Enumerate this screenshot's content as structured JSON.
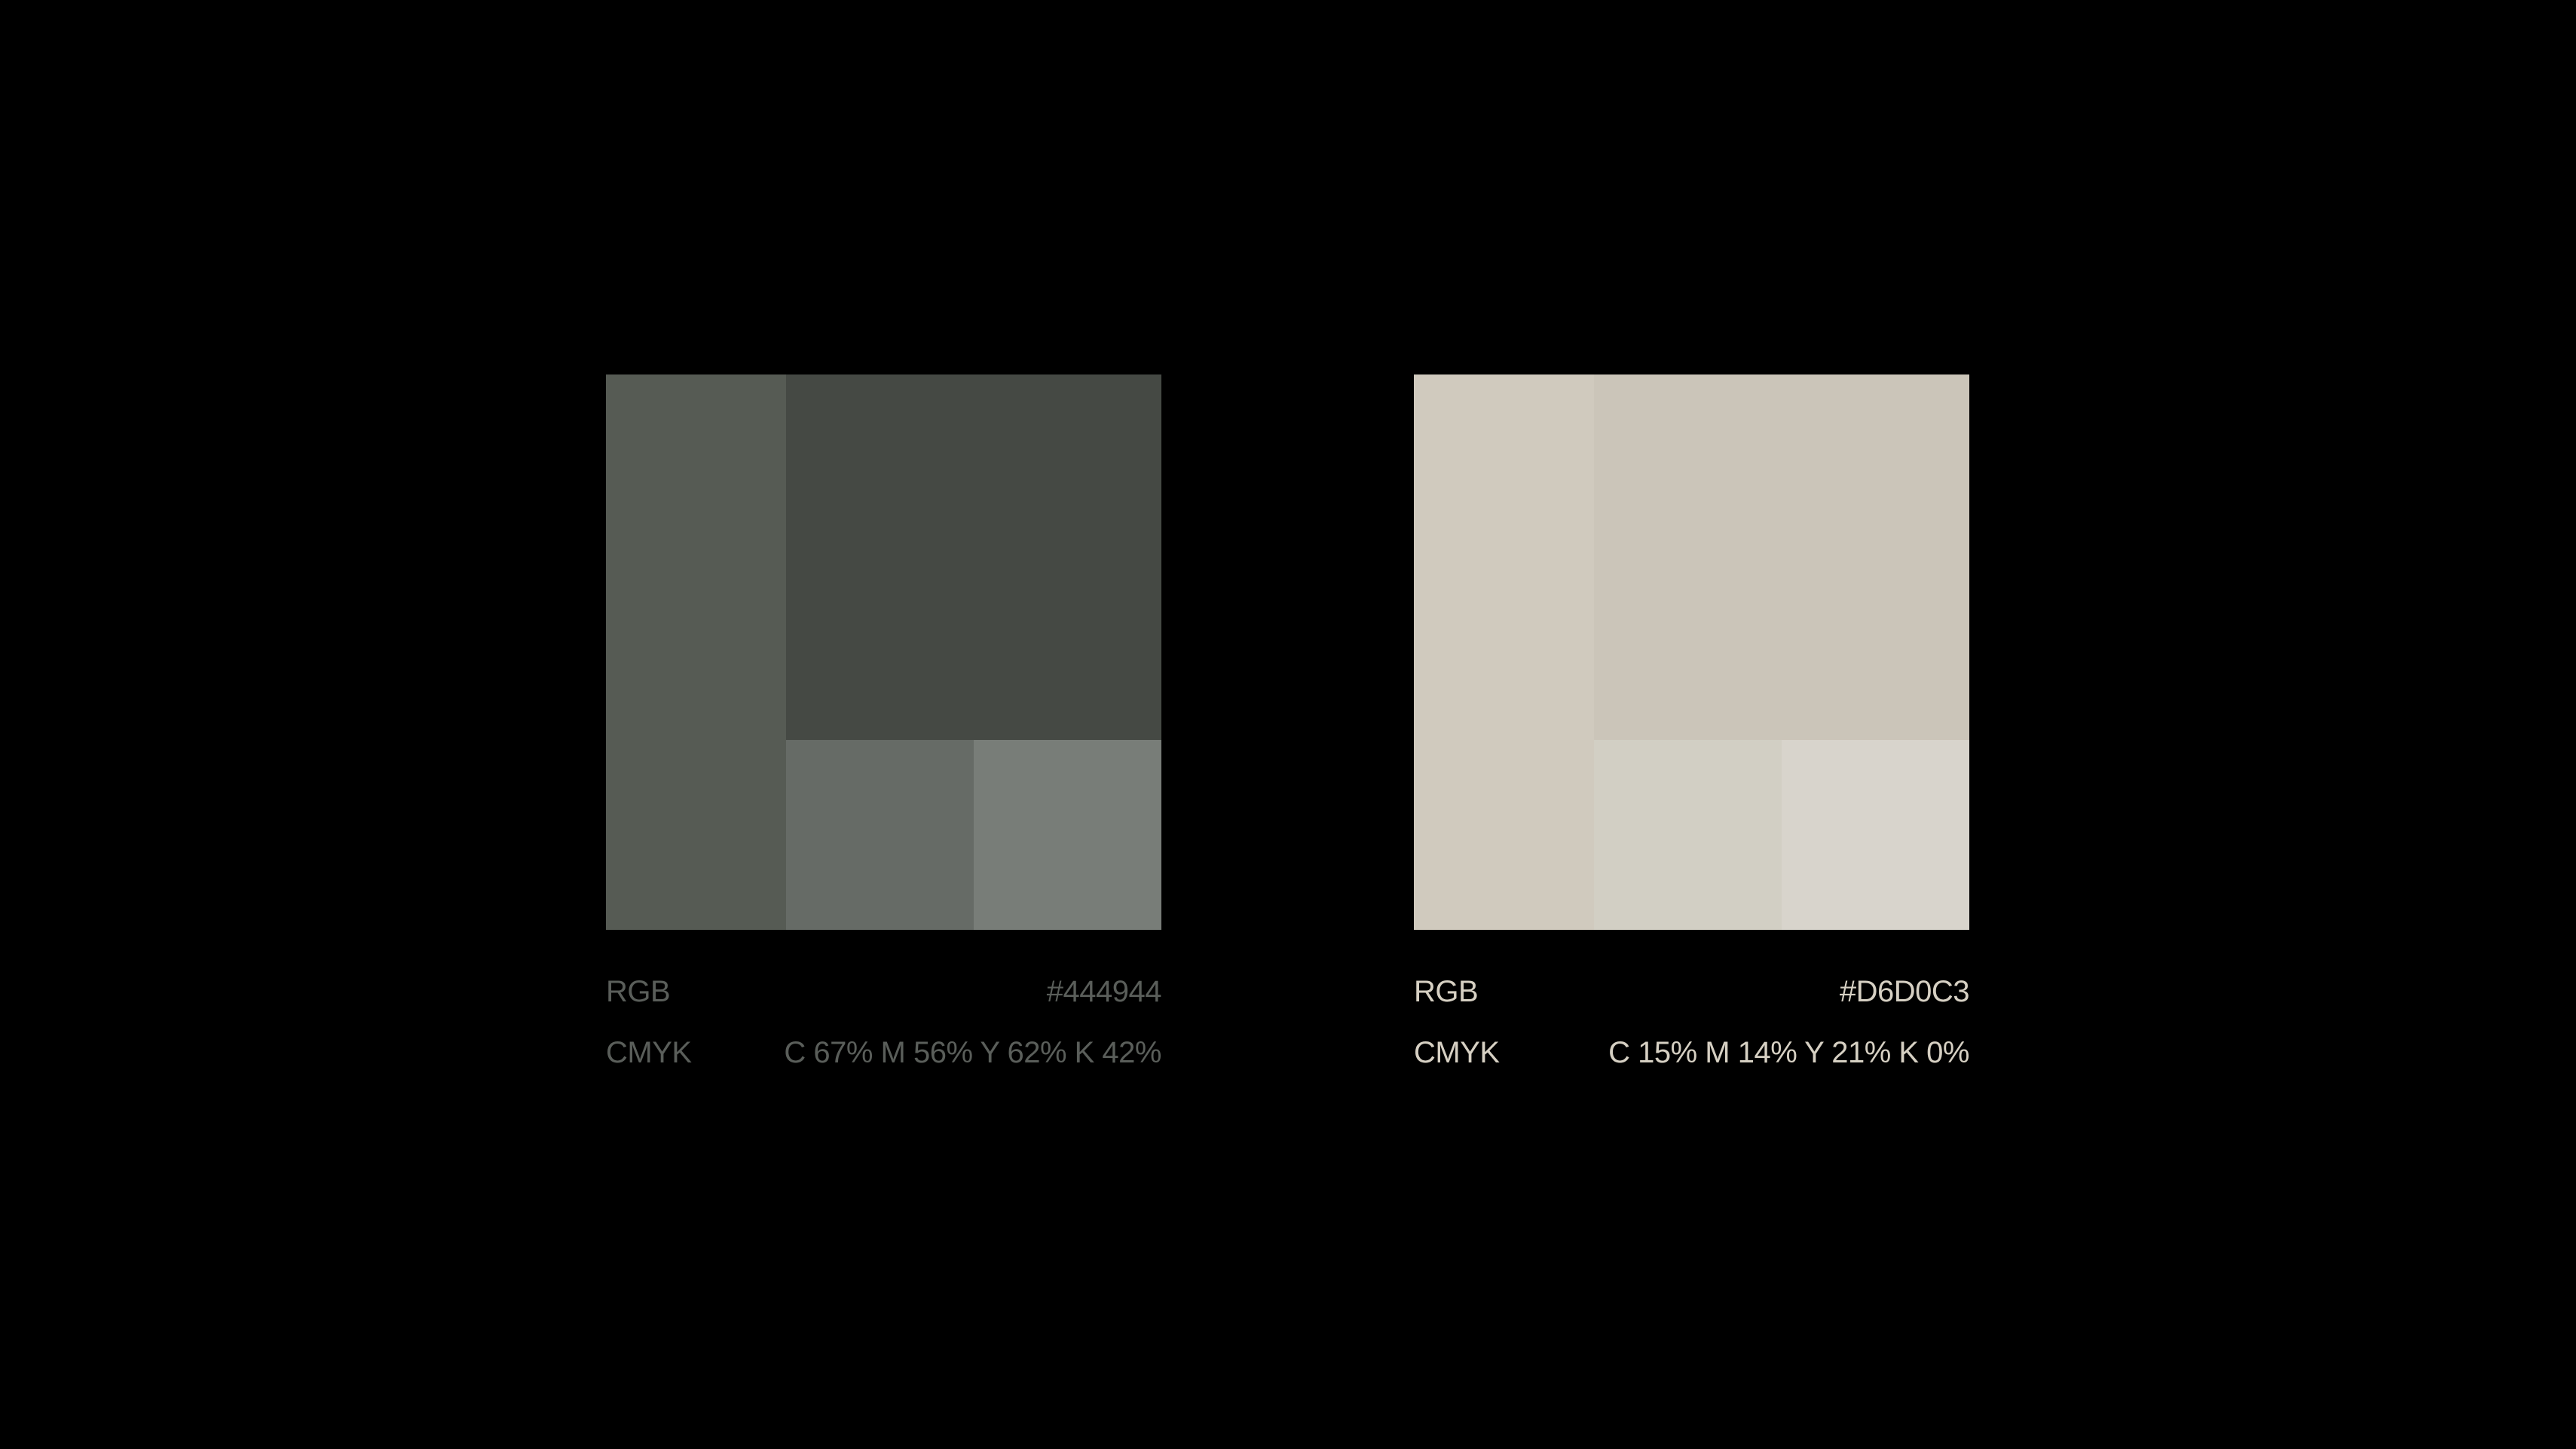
{
  "swatches": [
    {
      "hex": "#444944",
      "text_color": "#5a5e5a",
      "tiles": {
        "side": "#565b54",
        "main": "#454944",
        "tint_1": "#666b66",
        "tint_2": "#787d78"
      },
      "rgb_label": "RGB",
      "rgb_value": "#444944",
      "cmyk_label": "CMYK",
      "cmyk_value": "C 67% M 56% Y 62% K 42%"
    },
    {
      "hex": "#D6D0C3",
      "text_color": "#d6d0c3",
      "tiles": {
        "side": "#d0cabe",
        "main": "#cbc5b9",
        "tint_1": "#d2cfc4",
        "tint_2": "#d8d4cc"
      },
      "rgb_label": "RGB",
      "rgb_value": "#D6D0C3",
      "cmyk_label": "CMYK",
      "cmyk_value": "C 15% M 14% Y 21% K 0%"
    }
  ]
}
